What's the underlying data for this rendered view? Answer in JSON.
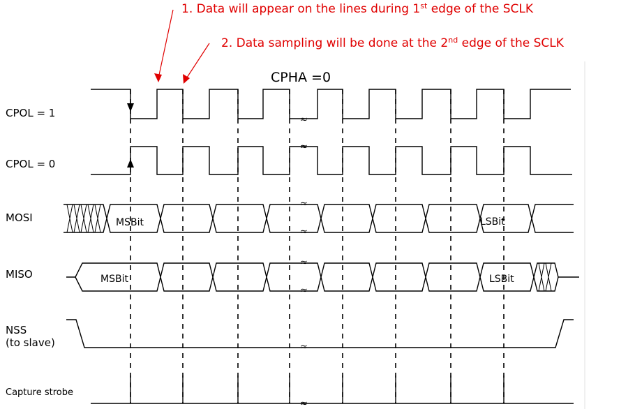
{
  "annotations": {
    "note1": {
      "prefix": "1. Data will appear on the lines during 1",
      "sup": "st",
      "suffix": " edge of the SCLK"
    },
    "note2": {
      "prefix": "2. Data sampling will be done at the 2",
      "sup": "nd",
      "suffix": " edge of the SCLK"
    },
    "arrow_color": "#e00000"
  },
  "title": "CPHA =0",
  "signals": {
    "cpol1": "CPOL = 1",
    "cpol0": "CPOL = 0",
    "mosi": "MOSI",
    "miso": "MISO",
    "nss_line1": "NSS",
    "nss_line2": "(to slave)",
    "capture": "Capture strobe"
  },
  "bits": {
    "mosi_first": "MSBit",
    "mosi_last": "LSBit",
    "miso_first": "MSBit",
    "miso_last": "LSBit"
  },
  "break_mark": "≈"
}
